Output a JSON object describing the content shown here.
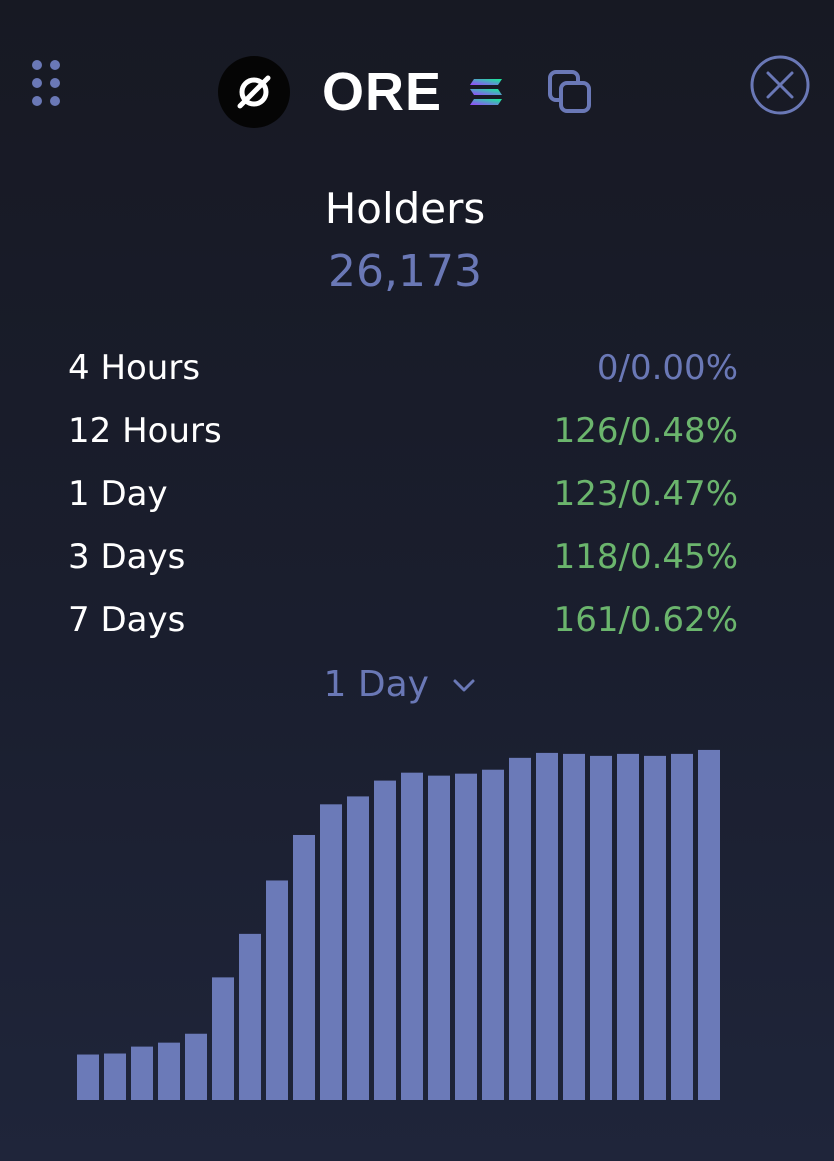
{
  "header": {
    "token_symbol": "ORE",
    "icons": {
      "drag": "drag-handle-icon",
      "logo": "ore-logo-icon",
      "chain": "solana-icon",
      "copy": "copy-icon",
      "close": "close-icon"
    }
  },
  "metric": {
    "title": "Holders",
    "value": "26,173"
  },
  "stats": [
    {
      "label": "4 Hours",
      "count": "0",
      "percent": "0.00%",
      "trend": "neutral"
    },
    {
      "label": "12 Hours",
      "count": "126",
      "percent": "0.48%",
      "trend": "up"
    },
    {
      "label": "1 Day",
      "count": "123",
      "percent": "0.47%",
      "trend": "up"
    },
    {
      "label": "3 Days",
      "count": "118",
      "percent": "0.45%",
      "trend": "up"
    },
    {
      "label": "7 Days",
      "count": "161",
      "percent": "0.62%",
      "trend": "up"
    }
  ],
  "period_select": {
    "selected": "1 Day"
  },
  "colors": {
    "accent": "#6a78b6",
    "positive": "#6bb56d",
    "background": "#171923",
    "bar": "#6b7ab8"
  },
  "chart_data": {
    "type": "bar",
    "values": [
      46,
      47,
      54,
      58,
      67,
      124,
      168,
      222,
      268,
      299,
      307,
      323,
      331,
      328,
      330,
      334,
      346,
      351,
      350,
      348,
      350,
      348,
      350,
      354
    ],
    "ylim": [
      0,
      360
    ]
  }
}
